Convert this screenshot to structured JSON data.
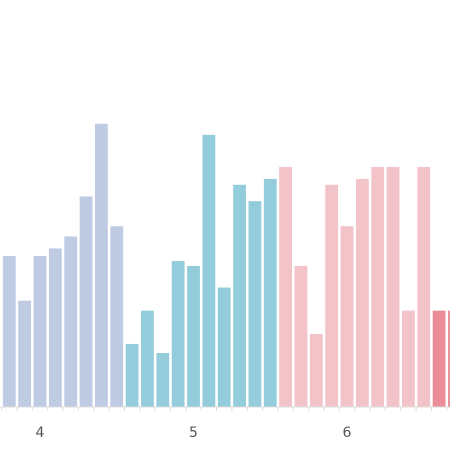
{
  "chart_data": {
    "type": "bar",
    "x_ticks": [
      {
        "label": "4",
        "value": 4
      },
      {
        "label": "5",
        "value": 5
      },
      {
        "label": "6",
        "value": 6
      }
    ],
    "ylim": [
      0,
      100
    ],
    "grid": false,
    "series": [
      {
        "color": "#bfcbe3",
        "values": [
          {
            "x": 3.8,
            "y": 51.7
          },
          {
            "x": 3.9,
            "y": 36.4
          },
          {
            "x": 4.0,
            "y": 51.7
          },
          {
            "x": 4.1,
            "y": 54.3
          },
          {
            "x": 4.2,
            "y": 58.4
          },
          {
            "x": 4.3,
            "y": 72.1
          },
          {
            "x": 4.4,
            "y": 97.0
          },
          {
            "x": 4.5,
            "y": 61.9
          }
        ]
      },
      {
        "color": "#93ccda",
        "values": [
          {
            "x": 4.6,
            "y": 21.6
          },
          {
            "x": 4.7,
            "y": 33.0
          },
          {
            "x": 4.8,
            "y": 18.5
          },
          {
            "x": 4.9,
            "y": 50.0
          },
          {
            "x": 5.0,
            "y": 48.3
          },
          {
            "x": 5.1,
            "y": 93.2
          },
          {
            "x": 5.2,
            "y": 40.9
          },
          {
            "x": 5.3,
            "y": 76.1
          },
          {
            "x": 5.4,
            "y": 70.5
          },
          {
            "x": 5.5,
            "y": 78.1
          }
        ]
      },
      {
        "color": "#f3c3ca",
        "values": [
          {
            "x": 5.6,
            "y": 82.2
          },
          {
            "x": 5.7,
            "y": 48.3
          },
          {
            "x": 5.8,
            "y": 25.0
          },
          {
            "x": 5.9,
            "y": 76.1
          },
          {
            "x": 6.0,
            "y": 61.9
          },
          {
            "x": 6.1,
            "y": 78.1
          },
          {
            "x": 6.2,
            "y": 82.2
          },
          {
            "x": 6.3,
            "y": 82.2
          },
          {
            "x": 6.4,
            "y": 33.0
          },
          {
            "x": 6.5,
            "y": 82.2
          }
        ]
      },
      {
        "color": "#e98e98",
        "values": [
          {
            "x": 6.6,
            "y": 33.0
          },
          {
            "x": 6.7,
            "y": 33.0
          }
        ]
      }
    ]
  }
}
